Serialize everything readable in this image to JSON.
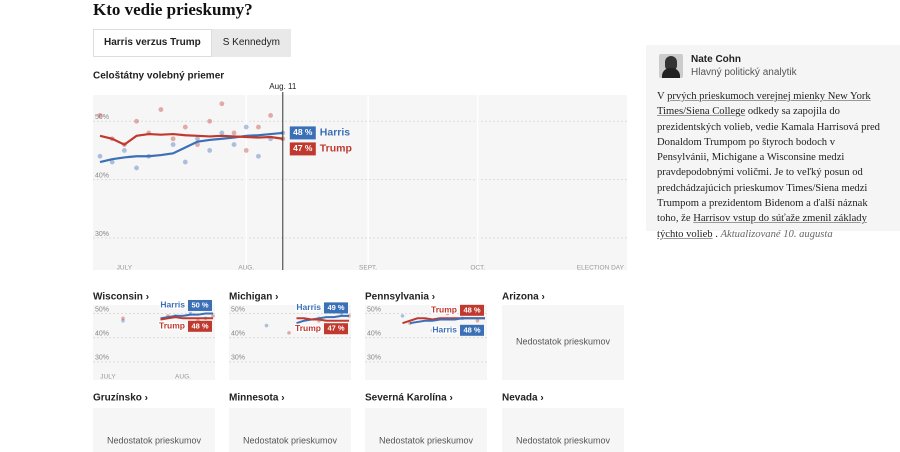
{
  "header": {
    "title": "Kto vedie prieskumy?",
    "tabs": [
      "Harris verzus Trump",
      "S Kennedym"
    ]
  },
  "chart_data": [
    {
      "type": "line",
      "title": "Celoštátny volebný priemer",
      "annotation": "Aug. 11",
      "categories": [
        null,
        null,
        "JULY",
        null,
        null,
        null,
        null,
        null,
        null,
        null,
        null,
        null,
        "AUG.",
        null,
        null,
        null,
        null,
        null,
        null,
        null,
        null,
        null,
        "SEPT.",
        null,
        null,
        null,
        null,
        null,
        null,
        null,
        null,
        "OCT.",
        null,
        null,
        null,
        null,
        null,
        null,
        null,
        null,
        null,
        null,
        null,
        "ELECTION DAY"
      ],
      "ylim": [
        24.5,
        54.5
      ],
      "yticks": [
        {
          "value": 50,
          "label": "50%"
        },
        {
          "value": 40,
          "label": "40%"
        },
        {
          "value": 30,
          "label": "30%"
        }
      ],
      "series": [
        {
          "name": "Harris",
          "color": "#3b6fb6",
          "values": [
            43,
            43.5,
            43.8,
            44,
            44,
            44.2,
            44.5,
            45.5,
            46.5,
            46.8,
            47,
            47.2,
            47.5,
            47.6,
            47.8,
            48,
            null,
            null,
            null,
            null,
            null,
            null,
            null,
            null,
            null,
            null,
            null,
            null,
            null,
            null,
            null,
            null,
            null,
            null,
            null,
            null,
            null,
            null,
            null,
            null,
            null,
            null,
            null,
            null
          ],
          "value_labels": [
            null,
            null,
            null,
            null,
            null,
            null,
            null,
            null,
            null,
            null,
            null,
            null,
            null,
            null,
            null,
            "48 %",
            null,
            null,
            null,
            null,
            null,
            null,
            null,
            null,
            null,
            null,
            null,
            null,
            null,
            null,
            null,
            null,
            null,
            null,
            null,
            null,
            null,
            null,
            null,
            null,
            null,
            null,
            null,
            null
          ],
          "polls": [
            44,
            43,
            45,
            42,
            44,
            null,
            46,
            43,
            47,
            45,
            48,
            46,
            49,
            44,
            47,
            48,
            null,
            null,
            null,
            null,
            null,
            null,
            null,
            null,
            null,
            null,
            null,
            null,
            null,
            null,
            null,
            null,
            null,
            null,
            null,
            null,
            null,
            null,
            null,
            null,
            null,
            null,
            null,
            null
          ]
        },
        {
          "name": "Trump",
          "color": "#c0392f",
          "values": [
            47.5,
            47,
            46,
            47.5,
            47.8,
            47.7,
            47.8,
            47.6,
            47.5,
            47.4,
            47.5,
            47.4,
            47.3,
            47.2,
            47.3,
            47,
            null,
            null,
            null,
            null,
            null,
            null,
            null,
            null,
            null,
            null,
            null,
            null,
            null,
            null,
            null,
            null,
            null,
            null,
            null,
            null,
            null,
            null,
            null,
            null,
            null,
            null,
            null,
            null
          ],
          "value_labels": [
            null,
            null,
            null,
            null,
            null,
            null,
            null,
            null,
            null,
            null,
            null,
            null,
            null,
            null,
            null,
            "47 %",
            null,
            null,
            null,
            null,
            null,
            null,
            null,
            null,
            null,
            null,
            null,
            null,
            null,
            null,
            null,
            null,
            null,
            null,
            null,
            null,
            null,
            null,
            null,
            null,
            null,
            null,
            null,
            null
          ],
          "polls": [
            51,
            47,
            46,
            50,
            48,
            52,
            47,
            49,
            46,
            50,
            53,
            48,
            45,
            49,
            51,
            47,
            null,
            null,
            null,
            null,
            null,
            null,
            null,
            null,
            null,
            null,
            null,
            null,
            null,
            null,
            null,
            null,
            null,
            null,
            null,
            null,
            null,
            null,
            null,
            null,
            null,
            null,
            null,
            null
          ]
        }
      ]
    },
    {
      "type": "line",
      "title": "Wisconsin ›",
      "categories": [
        null,
        null,
        "JULY",
        null,
        null,
        null,
        null,
        null,
        null,
        null,
        null,
        null,
        "AUG.",
        null,
        null,
        null,
        null
      ],
      "ylim": [
        22.5,
        53.5
      ],
      "yticks": [
        {
          "value": 50,
          "label": "50%"
        },
        {
          "value": 40,
          "label": "40%"
        },
        {
          "value": 30,
          "label": "30%"
        }
      ],
      "series": [
        {
          "name": "Harris",
          "color": "#3b6fb6",
          "values": [
            null,
            null,
            null,
            null,
            null,
            null,
            null,
            null,
            null,
            48,
            48.5,
            49,
            49,
            49.5,
            49.5,
            50,
            50
          ],
          "value_labels": [
            null,
            null,
            null,
            null,
            null,
            null,
            null,
            null,
            null,
            null,
            null,
            null,
            null,
            null,
            null,
            null,
            "50 %"
          ],
          "polls": [
            null,
            null,
            null,
            null,
            47,
            null,
            null,
            null,
            null,
            null,
            null,
            49,
            null,
            50,
            null,
            48,
            null
          ]
        },
        {
          "name": "Trump",
          "color": "#c0392f",
          "values": [
            null,
            null,
            null,
            null,
            null,
            null,
            null,
            null,
            null,
            47.5,
            48,
            48.5,
            48,
            48,
            48,
            48,
            48
          ],
          "value_labels": [
            null,
            null,
            null,
            null,
            null,
            null,
            null,
            null,
            null,
            null,
            null,
            null,
            null,
            null,
            null,
            null,
            "48 %"
          ],
          "polls": [
            null,
            null,
            null,
            null,
            48,
            null,
            null,
            null,
            null,
            null,
            49,
            null,
            null,
            null,
            47,
            null,
            49
          ]
        }
      ]
    },
    {
      "type": "line",
      "title": "Michigan ›",
      "categories": [
        null,
        null,
        null,
        null,
        null,
        null,
        null,
        null,
        null,
        null,
        null,
        null,
        null,
        null,
        null,
        null,
        null
      ],
      "ylim": [
        22.5,
        53.5
      ],
      "yticks": [
        {
          "value": 50,
          "label": "50%"
        },
        {
          "value": 40,
          "label": "40%"
        },
        {
          "value": 30,
          "label": "30%"
        }
      ],
      "series": [
        {
          "name": "Harris",
          "color": "#3b6fb6",
          "values": [
            null,
            null,
            null,
            null,
            null,
            null,
            null,
            null,
            null,
            46,
            47,
            47.5,
            48,
            48.5,
            48.5,
            49,
            49
          ],
          "value_labels": [
            null,
            null,
            null,
            null,
            null,
            null,
            null,
            null,
            null,
            null,
            null,
            null,
            null,
            null,
            null,
            null,
            "49 %"
          ],
          "polls": [
            null,
            null,
            null,
            null,
            null,
            45,
            null,
            null,
            null,
            null,
            null,
            null,
            48,
            null,
            null,
            50,
            null
          ]
        },
        {
          "name": "Trump",
          "color": "#c0392f",
          "values": [
            null,
            null,
            null,
            null,
            null,
            null,
            null,
            null,
            null,
            48,
            48,
            47.5,
            47.5,
            47,
            47,
            47,
            47
          ],
          "value_labels": [
            null,
            null,
            null,
            null,
            null,
            null,
            null,
            null,
            null,
            null,
            null,
            null,
            null,
            null,
            null,
            null,
            "47 %"
          ],
          "polls": [
            null,
            null,
            null,
            null,
            null,
            null,
            null,
            null,
            42,
            null,
            null,
            null,
            47,
            null,
            null,
            null,
            49
          ]
        }
      ]
    },
    {
      "type": "line",
      "title": "Pennsylvania ›",
      "categories": [
        null,
        null,
        null,
        null,
        null,
        null,
        null,
        null,
        null,
        null,
        null,
        null,
        null,
        null,
        null,
        null,
        null
      ],
      "ylim": [
        22.5,
        53.5
      ],
      "yticks": [
        {
          "value": 50,
          "label": "50%"
        },
        {
          "value": 40,
          "label": "40%"
        },
        {
          "value": 30,
          "label": "30%"
        }
      ],
      "series": [
        {
          "name": "Trump",
          "color": "#c0392f",
          "values": [
            null,
            null,
            null,
            null,
            null,
            46,
            47,
            48,
            48,
            47.5,
            48,
            48,
            48,
            48,
            48,
            48,
            48
          ],
          "value_labels": [
            null,
            null,
            null,
            null,
            null,
            null,
            null,
            null,
            null,
            null,
            null,
            null,
            null,
            null,
            null,
            null,
            "48 %"
          ],
          "polls": [
            null,
            null,
            null,
            null,
            null,
            null,
            46,
            null,
            null,
            null,
            null,
            50,
            null,
            null,
            null,
            47,
            null
          ]
        },
        {
          "name": "Harris",
          "color": "#3b6fb6",
          "values": [
            null,
            null,
            null,
            null,
            null,
            null,
            46,
            46.5,
            47,
            47,
            47.5,
            47.5,
            47.5,
            48,
            48,
            48,
            48
          ],
          "value_labels": [
            null,
            null,
            null,
            null,
            null,
            null,
            null,
            null,
            null,
            null,
            null,
            null,
            null,
            null,
            null,
            null,
            "48 %"
          ],
          "polls": [
            null,
            null,
            null,
            null,
            null,
            49,
            null,
            null,
            null,
            43,
            null,
            null,
            null,
            48,
            null,
            null,
            null
          ]
        }
      ]
    }
  ],
  "empty_states": {
    "note": "Nedostatok prieskumov",
    "states": [
      "Arizona ›",
      "Gruzínsko ›",
      "Minnesota ›",
      "Severná Karolína ›",
      "Nevada ›"
    ]
  },
  "sidebar": {
    "author": "Nate Cohn",
    "role": "Hlavný politický analytik",
    "text": [
      {
        "text": "V ",
        "link": false
      },
      {
        "text": "prvých prieskumoch verejnej mienky New York Times/Siena College",
        "link": true
      },
      {
        "text": " odkedy sa zapojila do prezidentských volieb, vedie Kamala Harrisová pred Donaldom Trumpom po štyroch bodoch v Pensylvánii, Michigane a Wisconsine medzi pravdepodobnými voličmi. Je to veľký posun od predchádzajúcich prieskumov Times/Siena medzi Trumpom a prezidentom Bidenom a ďalší náznak toho, že ",
        "link": false
      },
      {
        "text": "Harrisov vstup do súťaže zmenil základy týchto volieb",
        "link": true
      },
      {
        "text": " .",
        "link": false
      }
    ],
    "updated": "Aktualizované 10. augusta"
  }
}
